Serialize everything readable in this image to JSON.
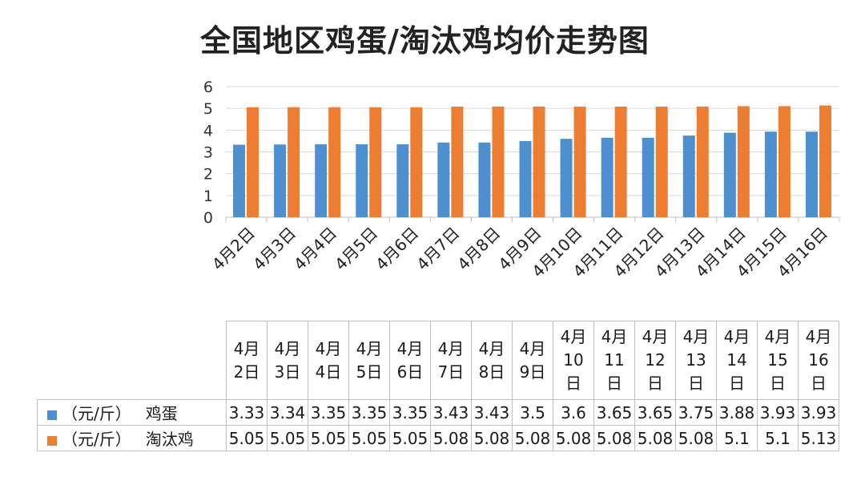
{
  "chart_data": {
    "type": "bar",
    "title": "全国地区鸡蛋/淘汰鸡均价走势图",
    "categories": [
      "4月2日",
      "4月3日",
      "4月4日",
      "4月5日",
      "4月6日",
      "4月7日",
      "4月8日",
      "4月9日",
      "4月10日",
      "4月11日",
      "4月12日",
      "4月13日",
      "4月14日",
      "4月15日",
      "4月16日"
    ],
    "header_lines": [
      [
        "4月",
        "2日"
      ],
      [
        "4月",
        "3日"
      ],
      [
        "4月",
        "4日"
      ],
      [
        "4月",
        "5日"
      ],
      [
        "4月",
        "6日"
      ],
      [
        "4月",
        "7日"
      ],
      [
        "4月",
        "8日"
      ],
      [
        "4月",
        "9日"
      ],
      [
        "4月",
        "10",
        "日"
      ],
      [
        "4月",
        "11",
        "日"
      ],
      [
        "4月",
        "12",
        "日"
      ],
      [
        "4月",
        "13",
        "日"
      ],
      [
        "4月",
        "14",
        "日"
      ],
      [
        "4月",
        "15",
        "日"
      ],
      [
        "4月",
        "16",
        "日"
      ]
    ],
    "series": [
      {
        "name": "鸡蛋",
        "unit": "（元/斤）",
        "color": "#4e8fd0",
        "values": [
          3.33,
          3.34,
          3.35,
          3.35,
          3.35,
          3.43,
          3.43,
          3.5,
          3.6,
          3.65,
          3.65,
          3.75,
          3.88,
          3.93,
          3.93
        ],
        "labels": [
          "3.33",
          "3.34",
          "3.35",
          "3.35",
          "3.35",
          "3.43",
          "3.43",
          "3.5",
          "3.6",
          "3.65",
          "3.65",
          "3.75",
          "3.88",
          "3.93",
          "3.93"
        ]
      },
      {
        "name": "淘汰鸡",
        "unit": "（元/斤）",
        "color": "#ed7d31",
        "values": [
          5.05,
          5.05,
          5.05,
          5.05,
          5.05,
          5.08,
          5.08,
          5.08,
          5.08,
          5.08,
          5.08,
          5.08,
          5.1,
          5.1,
          5.13
        ],
        "labels": [
          "5.05",
          "5.05",
          "5.05",
          "5.05",
          "5.05",
          "5.08",
          "5.08",
          "5.08",
          "5.08",
          "5.08",
          "5.08",
          "5.08",
          "5.1",
          "5.1",
          "5.13"
        ]
      }
    ],
    "ylim": [
      0,
      6
    ],
    "yticks": [
      "0",
      "1",
      "2",
      "3",
      "4",
      "5",
      "6"
    ],
    "grid": true,
    "legend": "data-table"
  }
}
